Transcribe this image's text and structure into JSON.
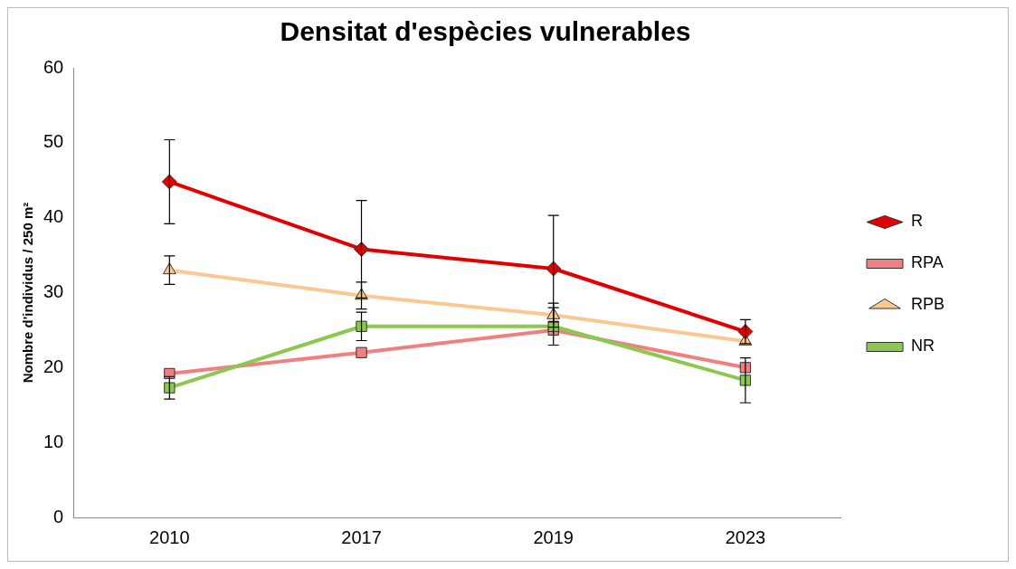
{
  "chart_data": {
    "type": "line",
    "title": "Densitat d'espècies vulnerables",
    "ylabel": "Nombre d'individus / 250 m²",
    "categories": [
      "2010",
      "2017",
      "2019",
      "2023"
    ],
    "series": [
      {
        "name": "R",
        "color": "#e00000",
        "marker": "diamond",
        "values": [
          44.8,
          35.8,
          33.2,
          24.8
        ],
        "errors": [
          5.6,
          6.5,
          7.1,
          1.6
        ]
      },
      {
        "name": "RPA",
        "color": "#f08080",
        "marker": "square",
        "values": [
          19.2,
          22,
          25,
          20
        ],
        "errors": [
          null,
          null,
          null,
          null
        ]
      },
      {
        "name": "RPB",
        "color": "#fac890",
        "marker": "triangle",
        "values": [
          33,
          29.6,
          27,
          23.5
        ],
        "errors": [
          1.9,
          1.8,
          1.6,
          null
        ]
      },
      {
        "name": "NR",
        "color": "#8cc850",
        "marker": "square",
        "values": [
          17.3,
          25.5,
          25.5,
          18.3
        ],
        "errors": [
          1.5,
          1.9,
          2.5,
          3
        ]
      }
    ],
    "ylim": [
      0,
      60
    ],
    "yticks": [
      0,
      10,
      20,
      30,
      40,
      50,
      60
    ],
    "grid": false,
    "legend": "right"
  }
}
